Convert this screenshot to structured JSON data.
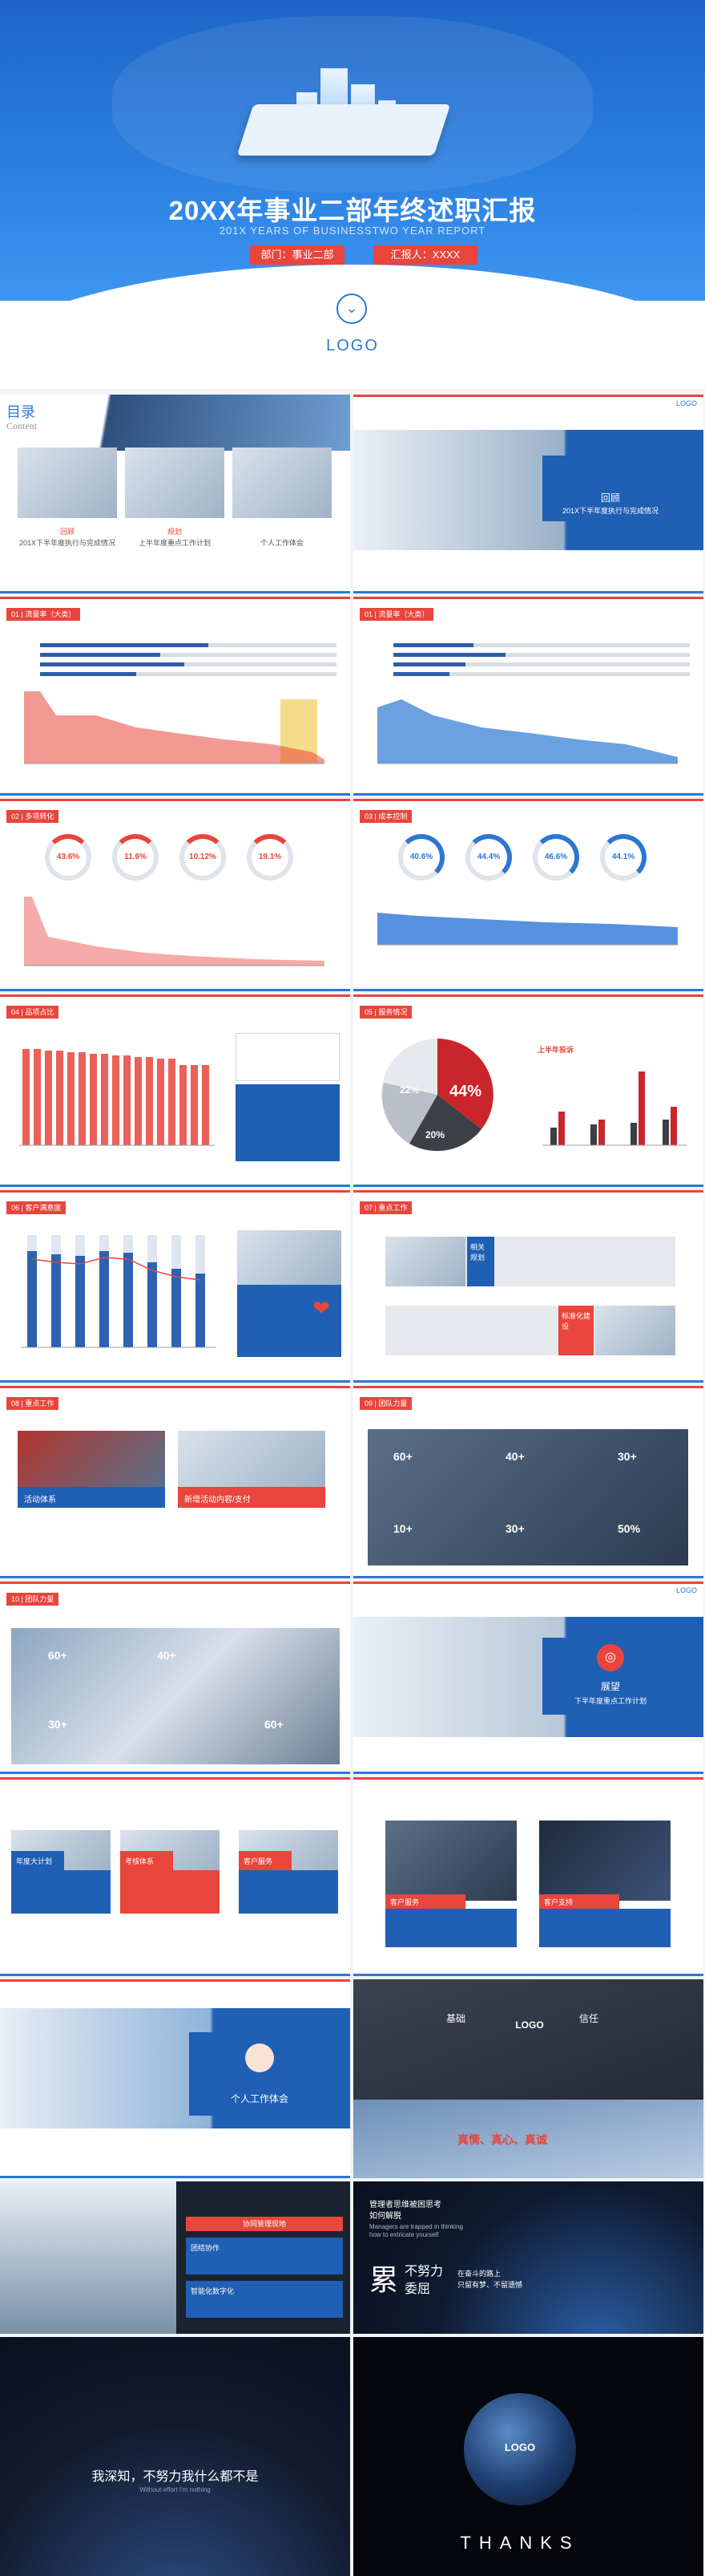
{
  "hero": {
    "title": "20XX年事业二部年终述职汇报",
    "subtitle": "201X YEARS OF BUSINESSTWO YEAR  REPORT",
    "dept_label": "部门：事业二部",
    "reporter_label": "汇报人：XXXX",
    "scroll_icon": "chevron-down-icon",
    "logo": "LOGO"
  },
  "colors": {
    "primary": "#2c77d4",
    "accent": "#e8453c",
    "dark": "#1f2a3c"
  },
  "slides": {
    "contents": {
      "title": "目录",
      "title_en": "Content",
      "items": [
        {
          "label": "回顾",
          "desc": "201X下半年度执行与完成情况"
        },
        {
          "label": "规划",
          "desc": "上半年度重点工作计划"
        },
        {
          "label": "",
          "desc": "个人工作体会"
        }
      ]
    },
    "review": {
      "label": "回顾",
      "desc": "201X下半年度执行与完成情况"
    },
    "s01a": {
      "tag": "01 | 流量率（大类）"
    },
    "s01b": {
      "tag": "01 | 流量率（大类）"
    },
    "s02": {
      "tag": "02 | 多项转化",
      "gauges": [
        "43.6%",
        "11.6%",
        "10.12%",
        "19.1%"
      ]
    },
    "s03": {
      "tag": "03 | 成本控制",
      "gauges": [
        "40.6%",
        "44.4%",
        "46.6%",
        "44.1%"
      ]
    },
    "s04": {
      "tag": "04 | 品项占比"
    },
    "s05": {
      "tag": "05 | 服务情况",
      "pie_pct": "44%",
      "pie_small_a": "22%",
      "pie_small_b": "20%",
      "chart_title": "上半年投诉"
    },
    "s06": {
      "tag": "06 | 客户满意度"
    },
    "s07": {
      "tag": "07 | 重点工作",
      "box_a": "相关规划",
      "box_b": "标准化建设"
    },
    "s08": {
      "tag": "08 | 重点工作",
      "box_a": "活动体系",
      "box_b": "新增活动内容/支付"
    },
    "s09": {
      "tag": "09 | 团队力量",
      "stats": [
        "60+",
        "40+",
        "30+",
        "10+",
        "30+",
        "50%"
      ]
    },
    "s10": {
      "tag": "10 | 团队力量",
      "stats": [
        "60+",
        "40+",
        "30+",
        "60+"
      ]
    },
    "plan": {
      "label": "展望",
      "desc": "下半年度重点工作计划"
    },
    "s11": {
      "boxes": [
        "年度大计划",
        "考核体系",
        "客户服务"
      ]
    },
    "s12": {
      "boxes": [
        "客户服务",
        "客户支持"
      ]
    },
    "personal": {
      "label": "个人工作体会"
    },
    "values": {
      "items": [
        "基础",
        "信任"
      ],
      "center": "LOGO",
      "slogan": "真情、真心、真诚"
    },
    "building": {
      "header": "协同管理现地",
      "b1": "团结协作",
      "b2": "智能化数字化"
    },
    "quote": {
      "line1": "管理者思维被困思考",
      "line2": "如何解脱",
      "en1": "Managers are trapped in thinking",
      "en2": "how to extricate yourself",
      "big": "累",
      "big2": "不努力",
      "big3": "委屈",
      "small1": "在奋斗的路上",
      "small2": "只留有梦、不留遗憾"
    },
    "closing": {
      "text": "我深知，不努力我什么都不是",
      "en": "Without effort I'm nothing"
    },
    "thanks": {
      "logo": "LOGO",
      "text": "THANKS"
    }
  },
  "logo_small": "LOGO"
}
